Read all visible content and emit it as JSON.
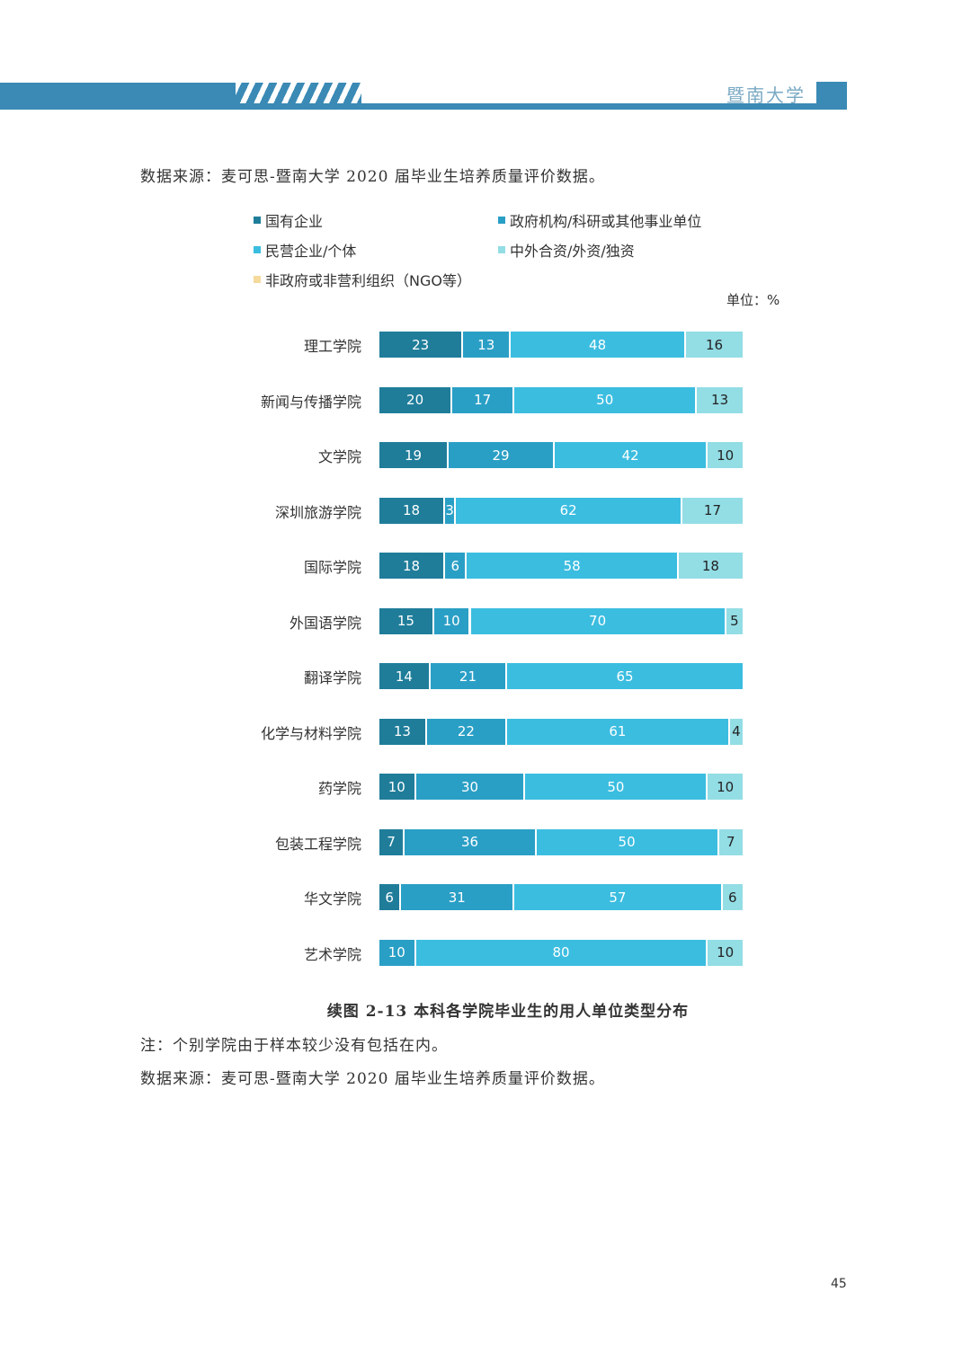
{
  "header": {
    "title": "暨南大学"
  },
  "source_top": "数据来源：麦可思-暨南大学 2020 届毕业生培养质量评价数据。",
  "unit": "单位：%",
  "caption": "续图 2-13  本科各学院毕业生的用人单位类型分布",
  "note": "注：个别学院由于样本较少没有包括在内。",
  "source_bottom": "数据来源：麦可思-暨南大学 2020 届毕业生培养质量评价数据。",
  "page_number": "45",
  "chart_data": {
    "type": "bar",
    "orientation": "horizontal-stacked",
    "title": "续图 2-13  本科各学院毕业生的用人单位类型分布",
    "unit": "%",
    "xlim": [
      0,
      100
    ],
    "legend_position": "top",
    "categories": [
      "理工学院",
      "新闻与传播学院",
      "文学院",
      "深圳旅游学院",
      "国际学院",
      "外国语学院",
      "翻译学院",
      "化学与材料学院",
      "药学院",
      "包装工程学院",
      "华文学院",
      "艺术学院"
    ],
    "series": [
      {
        "name": "国有企业",
        "color": "#1f7d9a",
        "values": [
          23,
          20,
          19,
          18,
          18,
          15,
          14,
          13,
          10,
          7,
          6,
          0
        ]
      },
      {
        "name": "政府机构/科研或其他事业单位",
        "color": "#2a9fc6",
        "values": [
          13,
          17,
          29,
          3,
          6,
          10,
          21,
          22,
          30,
          36,
          31,
          10
        ]
      },
      {
        "name": "民营企业/个体",
        "color": "#3bbde0",
        "values": [
          48,
          50,
          42,
          62,
          58,
          70,
          65,
          61,
          50,
          50,
          57,
          80
        ]
      },
      {
        "name": "中外合资/外资/独资",
        "color": "#93dde5",
        "values": [
          16,
          13,
          10,
          17,
          18,
          5,
          0,
          4,
          10,
          7,
          6,
          10
        ]
      },
      {
        "name": "非政府或非营利组织（NGO等）",
        "color": "#f5da9c",
        "values": [
          0,
          0,
          0,
          0,
          0,
          0,
          0,
          0,
          0,
          0,
          0,
          0
        ]
      }
    ]
  }
}
